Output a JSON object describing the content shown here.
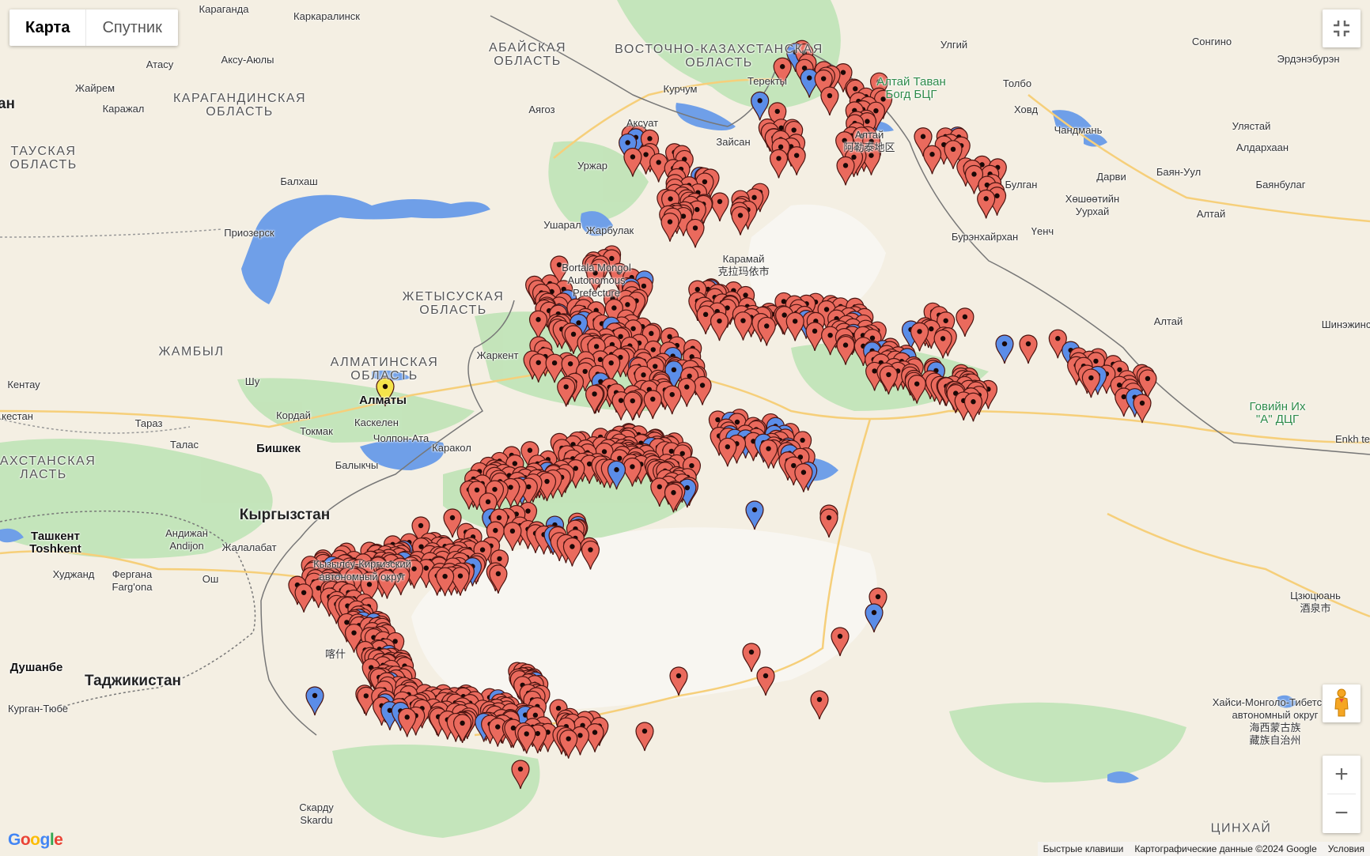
{
  "map_type_control": {
    "options": [
      "Карта",
      "Спутник"
    ],
    "selected": "Карта"
  },
  "controls": {
    "fullscreen_icon": "fullscreen-exit-icon",
    "pegman_icon": "street-view-pegman-icon",
    "zoom_in": "+",
    "zoom_out": "−"
  },
  "footer": {
    "shortcuts": "Быстрые клавиши",
    "map_data": "Картографические данные ©2024 Google",
    "terms": "Условия"
  },
  "logo": "Google",
  "colors": {
    "marker_red": "#ea6a5d",
    "marker_blue": "#5b8de8",
    "marker_yellow": "#f5e34a",
    "marker_outline": "#4a1410",
    "water": "#6f9fe8",
    "land": "#f4efe3",
    "forest": "#b8e0b0"
  },
  "labels": [
    {
      "text": "Караганда",
      "type": "place"
    },
    {
      "text": "Каркаралинск",
      "type": "place"
    },
    {
      "text": "АБАЙСКАЯ\nОБЛАСТЬ",
      "type": "region"
    },
    {
      "text": "ВОСТОЧНО-КАЗАХСТАНСКАЯ\nОБЛАСТЬ",
      "type": "region"
    },
    {
      "text": "Атасу",
      "type": "place"
    },
    {
      "text": "Аксу-Аюлы",
      "type": "place"
    },
    {
      "text": "Жайрем",
      "type": "place"
    },
    {
      "text": "Каражал",
      "type": "place"
    },
    {
      "text": "КАРАГАНДИНСКАЯ\nОБЛАСТЬ",
      "type": "region"
    },
    {
      "text": "Аягоз",
      "type": "place"
    },
    {
      "text": "Курчум",
      "type": "place"
    },
    {
      "text": "Теректы",
      "type": "place"
    },
    {
      "text": "Алтай Таван\nБогд БЦГ",
      "type": "park"
    },
    {
      "text": "Улгий",
      "type": "place"
    },
    {
      "text": "Толбо",
      "type": "place"
    },
    {
      "text": "Сонгино",
      "type": "place"
    },
    {
      "text": "Эрдэнэбурэн",
      "type": "place"
    },
    {
      "text": "Ховд",
      "type": "place"
    },
    {
      "text": "Чандмань",
      "type": "place"
    },
    {
      "text": "Улястай",
      "type": "place"
    },
    {
      "text": "Алдархаан",
      "type": "place"
    },
    {
      "text": "Аксуат",
      "type": "place"
    },
    {
      "text": "Зайсан",
      "type": "place"
    },
    {
      "text": "Алтай\n阿勒泰地区",
      "type": "place"
    },
    {
      "text": "Уржар",
      "type": "place"
    },
    {
      "text": "Балхаш",
      "type": "place"
    },
    {
      "text": "Булган",
      "type": "place"
    },
    {
      "text": "Дарви",
      "type": "place"
    },
    {
      "text": "Баян-Уул",
      "type": "place"
    },
    {
      "text": "Баянбулаг",
      "type": "place"
    },
    {
      "text": "Хөшөөтийн\nУурхай",
      "type": "place"
    },
    {
      "text": "Бурэнхайрхан",
      "type": "place"
    },
    {
      "text": "Үенч",
      "type": "place"
    },
    {
      "text": "Алтай",
      "type": "place"
    },
    {
      "text": "Приозерск",
      "type": "place"
    },
    {
      "text": "Ушарал",
      "type": "place"
    },
    {
      "text": "Жарбулак",
      "type": "place"
    },
    {
      "text": "Карамай\n克拉玛依市",
      "type": "place"
    },
    {
      "text": "Bortala Mongol\nAutonomous\nPrefecture",
      "type": "place"
    },
    {
      "text": "ЖЕТЫСУСКАЯ\nОБЛАСТЬ",
      "type": "region"
    },
    {
      "text": "Алтай",
      "type": "place"
    },
    {
      "text": "Шинэжинст",
      "type": "place"
    },
    {
      "text": "ЖАМБЫЛ",
      "type": "region"
    },
    {
      "text": "Жаркент",
      "type": "place"
    },
    {
      "text": "АЛМАТИНСКАЯ\nОБЛАСТЬ",
      "type": "region"
    },
    {
      "text": "Кентау",
      "type": "place"
    },
    {
      "text": "Шу",
      "type": "place"
    },
    {
      "text": "Алматы",
      "type": "city"
    },
    {
      "text": "Кордай",
      "type": "place"
    },
    {
      "text": "Каскелен",
      "type": "place"
    },
    {
      "text": "Токмак",
      "type": "place"
    },
    {
      "text": "Чолпон-Ата",
      "type": "place"
    },
    {
      "text": "Тараз",
      "type": "place"
    },
    {
      "text": "Бишкек",
      "type": "city"
    },
    {
      "text": "Каракол",
      "type": "place"
    },
    {
      "text": "Талас",
      "type": "place"
    },
    {
      "text": "Балыкчы",
      "type": "place"
    },
    {
      "text": "кестан",
      "type": "place"
    },
    {
      "text": "ЗАХСТАНСКАЯ\nЛАСТЬ",
      "type": "region"
    },
    {
      "text": "ТАУСКАЯ\nОБЛАСТЬ",
      "type": "region"
    },
    {
      "text": "Кыргызстан",
      "type": "country"
    },
    {
      "text": "Ташкент\nToshkent",
      "type": "city"
    },
    {
      "text": "Андижан\nAndijon",
      "type": "place"
    },
    {
      "text": "Жалалабат",
      "type": "place"
    },
    {
      "text": "Худжанд",
      "type": "place"
    },
    {
      "text": "Фергана\nFarg'ona",
      "type": "place"
    },
    {
      "text": "Ош",
      "type": "place"
    },
    {
      "text": "Кызылсу-Киргизский\nавтономный округ",
      "type": "place"
    },
    {
      "text": "Душанбе",
      "type": "city"
    },
    {
      "text": "Таджикистан",
      "type": "country"
    },
    {
      "text": "Курган-Тюбе",
      "type": "place"
    },
    {
      "text": "Скарду\nSkardu",
      "type": "place"
    },
    {
      "text": "Говийн Их\n\"А\" ДЦГ",
      "type": "park"
    },
    {
      "text": "Enkh te",
      "type": "place"
    },
    {
      "text": "Цзюцюань\n酒泉市",
      "type": "place"
    },
    {
      "text": "Хайси-Монголо-Тибетский\nавтономный округ\n海西蒙古族\n藏族自治州",
      "type": "place"
    },
    {
      "text": "ЦИНХАЙ",
      "type": "region"
    },
    {
      "text": "ан",
      "type": "country"
    },
    {
      "text": "喀什",
      "type": "place"
    }
  ]
}
